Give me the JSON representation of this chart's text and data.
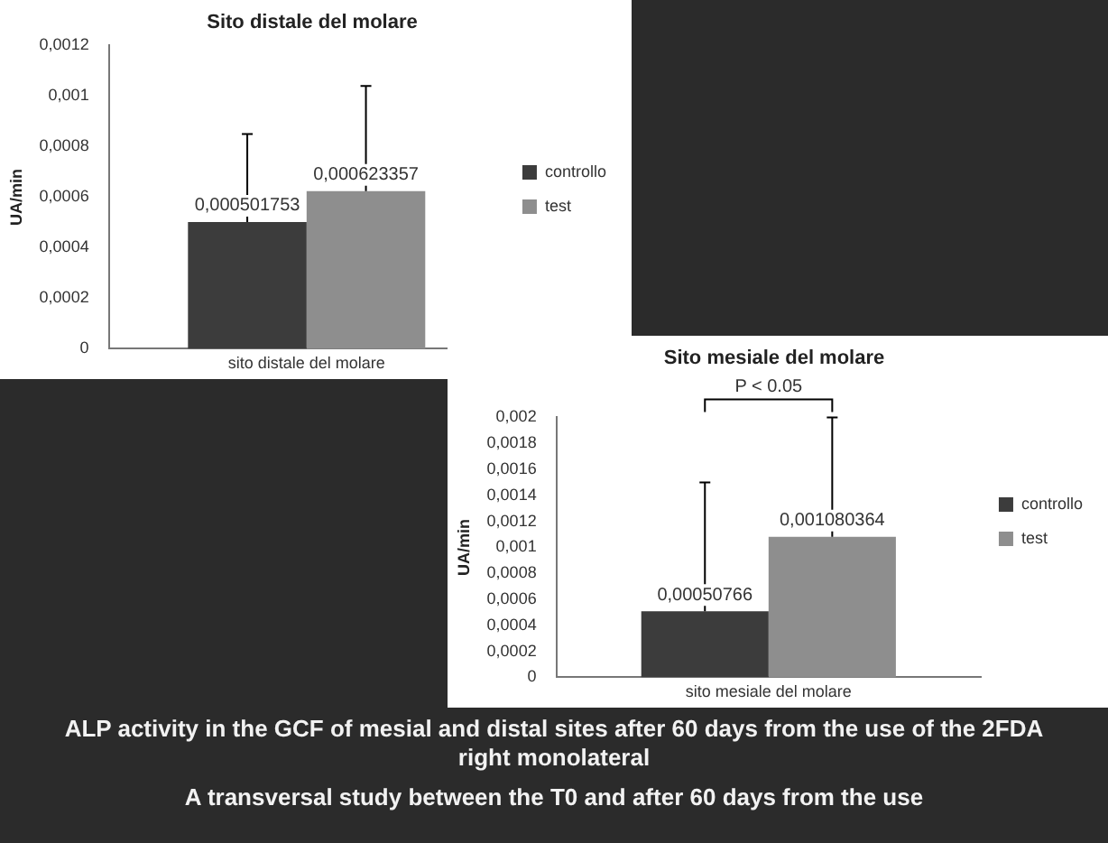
{
  "chart_data": [
    {
      "type": "bar",
      "title": "Sito distale del molare",
      "ylabel": "UA/min",
      "categories": [
        "sito distale del molare"
      ],
      "ylim": [
        0,
        0.0012
      ],
      "yticks": [
        {
          "value": 0,
          "label": "0"
        },
        {
          "value": 0.0002,
          "label": "0,0002"
        },
        {
          "value": 0.0004,
          "label": "0,0004"
        },
        {
          "value": 0.0006,
          "label": "0,0006"
        },
        {
          "value": 0.0008,
          "label": "0,0008"
        },
        {
          "value": 0.001,
          "label": "0,001"
        },
        {
          "value": 0.0012,
          "label": "0,0012"
        }
      ],
      "grid": false,
      "legend": "right",
      "series": [
        {
          "name": "controllo",
          "color": "#3c3c3c",
          "values": [
            0.000501753
          ],
          "errors": [
            [
              0.000501753,
              0.00085
            ]
          ],
          "value_labels": [
            "0,000501753"
          ]
        },
        {
          "name": "test",
          "color": "#8e8e8e",
          "values": [
            0.000623357
          ],
          "errors": [
            [
              0.000623357,
              0.00104
            ]
          ],
          "value_labels": [
            "0,000623357"
          ]
        }
      ]
    },
    {
      "type": "bar",
      "title": "Sito mesiale del molare",
      "ylabel": "UA/min",
      "categories": [
        "sito mesiale del molare"
      ],
      "ylim": [
        0,
        0.002
      ],
      "yticks": [
        {
          "value": 0,
          "label": "0"
        },
        {
          "value": 0.0002,
          "label": "0,0002"
        },
        {
          "value": 0.0004,
          "label": "0,0004"
        },
        {
          "value": 0.0006,
          "label": "0,0006"
        },
        {
          "value": 0.0008,
          "label": "0,0008"
        },
        {
          "value": 0.001,
          "label": "0,001"
        },
        {
          "value": 0.0012,
          "label": "0,0012"
        },
        {
          "value": 0.0014,
          "label": "0,0014"
        },
        {
          "value": 0.0016,
          "label": "0,0016"
        },
        {
          "value": 0.0018,
          "label": "0,0018"
        },
        {
          "value": 0.002,
          "label": "0,002"
        }
      ],
      "grid": false,
      "legend": "right",
      "annotations": [
        "P < 0.05"
      ],
      "series": [
        {
          "name": "controllo",
          "color": "#3c3c3c",
          "values": [
            0.00050766
          ],
          "errors": [
            [
              0.00050766,
              0.0015
            ]
          ],
          "value_labels": [
            "0,00050766"
          ]
        },
        {
          "name": "test",
          "color": "#8e8e8e",
          "values": [
            0.001080364
          ],
          "errors": [
            [
              0.001080364,
              0.002
            ]
          ],
          "value_labels": [
            "0,001080364"
          ]
        }
      ]
    },
    {
      "type": "other",
      "title": "ALP activity in the GCF of mesial and distal sites after 60 days from the use of the 2FDA right monolateral",
      "subtitle": "A transversal study between the T0 and after 60 days from the use"
    }
  ]
}
